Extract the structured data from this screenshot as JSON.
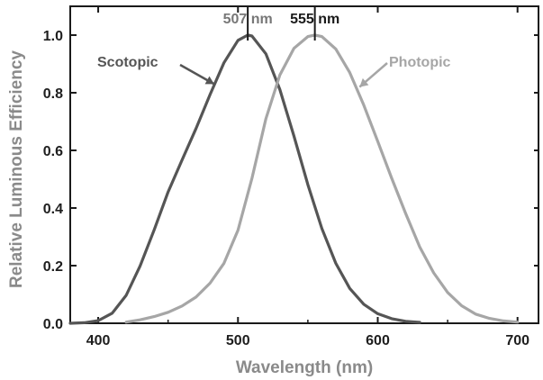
{
  "chart_data": {
    "type": "line",
    "xlabel": "Wavelength (nm)",
    "ylabel": "Relative Luminous Efficiency",
    "xlim": [
      380,
      715
    ],
    "ylim": [
      0,
      1.1
    ],
    "x_ticks": [
      400,
      500,
      600,
      700
    ],
    "y_ticks": [
      0.0,
      0.2,
      0.4,
      0.6,
      0.8,
      1.0
    ],
    "y_tick_labels": [
      "0.0",
      "0.2",
      "0.4",
      "0.6",
      "0.8",
      "1.0"
    ],
    "grid": false,
    "legend": "none",
    "annotations": [
      {
        "text": "507 nm",
        "x": 507,
        "color": "#777777"
      },
      {
        "text": "555 nm",
        "x": 555,
        "color": "#1a1a1a"
      }
    ],
    "series": [
      {
        "name": "Scotopic",
        "color": "#555555",
        "label_arrow_to": {
          "x": 483,
          "y": 0.83
        },
        "x": [
          380,
          390,
          400,
          410,
          420,
          430,
          440,
          450,
          460,
          470,
          480,
          490,
          500,
          507,
          510,
          520,
          530,
          540,
          550,
          560,
          570,
          580,
          590,
          600,
          610,
          620,
          630
        ],
        "values": [
          0.0,
          0.002,
          0.009,
          0.035,
          0.097,
          0.199,
          0.323,
          0.456,
          0.567,
          0.676,
          0.793,
          0.904,
          0.982,
          1.0,
          0.997,
          0.935,
          0.811,
          0.65,
          0.481,
          0.329,
          0.208,
          0.121,
          0.066,
          0.033,
          0.016,
          0.007,
          0.003
        ]
      },
      {
        "name": "Photopic",
        "color": "#a6a6a6",
        "label_arrow_to": {
          "x": 587,
          "y": 0.82
        },
        "x": [
          420,
          430,
          440,
          450,
          460,
          470,
          480,
          490,
          500,
          510,
          520,
          530,
          540,
          550,
          555,
          560,
          570,
          580,
          590,
          600,
          610,
          620,
          630,
          640,
          650,
          660,
          670,
          680,
          690,
          700
        ],
        "values": [
          0.004,
          0.012,
          0.023,
          0.038,
          0.06,
          0.091,
          0.139,
          0.208,
          0.323,
          0.503,
          0.71,
          0.862,
          0.954,
          0.995,
          1.0,
          0.995,
          0.952,
          0.87,
          0.757,
          0.631,
          0.503,
          0.381,
          0.265,
          0.175,
          0.107,
          0.061,
          0.032,
          0.017,
          0.008,
          0.004
        ]
      }
    ]
  }
}
